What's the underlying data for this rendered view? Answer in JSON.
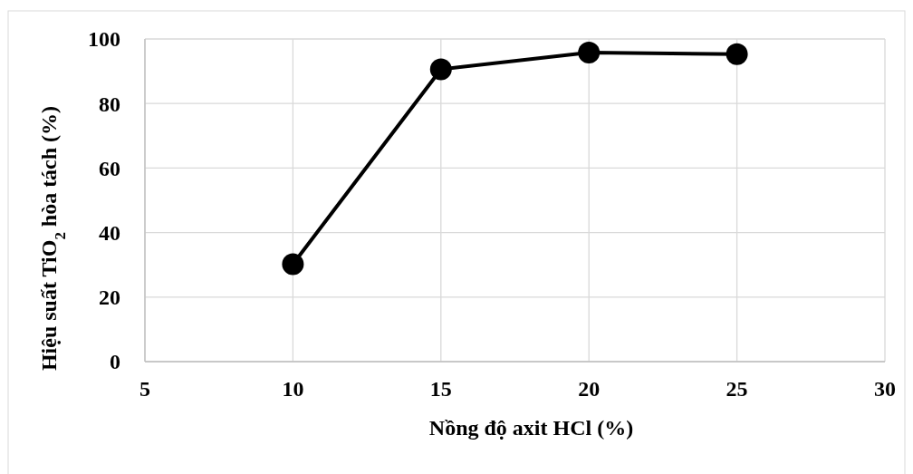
{
  "chart_data": {
    "type": "line",
    "xlabel": "Nồng độ axit HCl (%)",
    "ylabel": "Hiệu suất TiO$_{2}$ hòa tách (%)",
    "x": [
      10,
      15,
      20,
      25
    ],
    "series": [
      {
        "color": "#000000",
        "values": [
          30.2,
          90.6,
          95.8,
          95.3
        ]
      }
    ],
    "xlim": [
      5,
      30
    ],
    "xticks": [
      5,
      10,
      15,
      20,
      25,
      30
    ],
    "ylim": [
      0,
      100
    ],
    "yticks": [
      0,
      20,
      40,
      60,
      80,
      100
    ],
    "grid": true,
    "marker": "circle",
    "line_style": "solid"
  }
}
